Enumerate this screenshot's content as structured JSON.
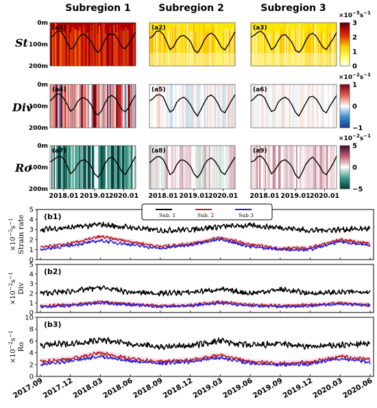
{
  "colors": {
    "sub1": "#000000",
    "sub2": "#b22222",
    "sub3": "#2b1bd6",
    "band": "#f7c8e0"
  },
  "top": {
    "col_titles": [
      "Subregion 1",
      "Subregion 2",
      "Subregion 3"
    ],
    "row_labels": [
      "St",
      "Div",
      "Ro"
    ],
    "depth_ticks": [
      "0m",
      "100m",
      "200m"
    ],
    "x_ticks": [
      "2018.01",
      "2019.01",
      "2020.01"
    ],
    "panel_labels": [
      "(a1)",
      "(a2)",
      "(a3)",
      "(a4)",
      "(a5)",
      "(a6)",
      "(a7)",
      "(a8)",
      "(a9)"
    ],
    "colorbars": [
      {
        "unit_base": "×10",
        "unit_exp": "−5",
        "unit_tail": "s",
        "unit_tail_exp": "−1",
        "ticks": [
          "3",
          "2",
          "1",
          "0"
        ],
        "range": [
          0,
          3
        ],
        "colormap": "hot_r"
      },
      {
        "unit_base": "×10",
        "unit_exp": "−2",
        "unit_tail": "s",
        "unit_tail_exp": "−1",
        "ticks": [
          "1",
          "0",
          "−1"
        ],
        "range": [
          -1,
          1
        ],
        "colormap": "RdBu_r"
      },
      {
        "unit_base": "×10",
        "unit_exp": "−2",
        "unit_tail": "s",
        "unit_tail_exp": "−1",
        "ticks": [
          "5",
          "0",
          "−5"
        ],
        "range": [
          -5,
          5
        ],
        "colormap": "curl"
      }
    ]
  },
  "legend": [
    "Sub. 1",
    "Sub. 2",
    "Sub 3"
  ],
  "bottom_x_ticks": [
    "2017.09",
    "2017.12",
    "2018.03",
    "2018.06",
    "2018.09",
    "2018.12",
    "2019.03",
    "2019.06",
    "2019.09",
    "2019.12",
    "2020.03",
    "2020.06"
  ],
  "chart_data": [
    {
      "type": "line",
      "label": "(b1)",
      "ylabel": "Strain rate",
      "yunit_base": "×10",
      "yunit_exp": "−5",
      "yunit_tail": "s",
      "yunit_tail_exp": "−1",
      "ylim": [
        0,
        5
      ],
      "yticks": [
        "0",
        "1",
        "2",
        "3",
        "4",
        "5"
      ],
      "x": [
        "2017.09",
        "2017.12",
        "2018.03",
        "2018.06",
        "2018.09",
        "2018.12",
        "2019.03",
        "2019.06",
        "2019.09",
        "2019.12",
        "2020.03",
        "2020.06"
      ],
      "series": [
        {
          "name": "Sub. 1",
          "values": [
            3.0,
            3.2,
            3.5,
            3.2,
            2.9,
            3.0,
            3.3,
            3.4,
            3.2,
            2.9,
            3.0,
            3.1
          ]
        },
        {
          "name": "Sub. 2",
          "values": [
            1.2,
            1.6,
            2.3,
            1.8,
            1.3,
            1.6,
            2.2,
            1.5,
            1.1,
            1.2,
            2.0,
            1.6
          ]
        },
        {
          "name": "Sub 3",
          "values": [
            1.0,
            1.4,
            1.9,
            1.5,
            1.1,
            1.5,
            2.0,
            1.3,
            1.0,
            1.0,
            1.8,
            1.4
          ]
        }
      ]
    },
    {
      "type": "line",
      "label": "(b2)",
      "ylabel": "Div",
      "yunit_base": "×10",
      "yunit_exp": "−2",
      "yunit_tail": "s",
      "yunit_tail_exp": "−1",
      "ylim": [
        0,
        5
      ],
      "yticks": [
        "0",
        "1",
        "2",
        "3",
        "4",
        "5"
      ],
      "x": [
        "2017.09",
        "2017.12",
        "2018.03",
        "2018.06",
        "2018.09",
        "2018.12",
        "2019.03",
        "2019.06",
        "2019.09",
        "2019.12",
        "2020.03",
        "2020.06"
      ],
      "series": [
        {
          "name": "Sub. 1",
          "values": [
            2.0,
            2.2,
            2.6,
            2.1,
            2.0,
            2.1,
            2.4,
            2.0,
            2.4,
            2.0,
            2.1,
            2.2
          ]
        },
        {
          "name": "Sub. 2",
          "values": [
            0.7,
            0.8,
            1.1,
            0.9,
            0.7,
            0.8,
            1.1,
            0.8,
            0.7,
            0.8,
            1.0,
            0.8
          ]
        },
        {
          "name": "Sub 3",
          "values": [
            0.6,
            0.7,
            1.0,
            0.8,
            0.6,
            0.7,
            1.0,
            0.7,
            0.6,
            0.7,
            0.9,
            0.7
          ]
        }
      ]
    },
    {
      "type": "line",
      "label": "(b3)",
      "ylabel": "Ro",
      "yunit_base": "×10",
      "yunit_exp": "−2",
      "yunit_tail": "s",
      "yunit_tail_exp": "−1",
      "ylim": [
        0,
        10
      ],
      "yticks": [
        "0",
        "2",
        "4",
        "6",
        "8",
        "10"
      ],
      "x": [
        "2017.09",
        "2017.12",
        "2018.03",
        "2018.06",
        "2018.09",
        "2018.12",
        "2019.03",
        "2019.06",
        "2019.09",
        "2019.12",
        "2020.03",
        "2020.06"
      ],
      "series": [
        {
          "name": "Sub. 1",
          "values": [
            5.3,
            5.5,
            6.2,
            5.5,
            5.0,
            5.2,
            6.0,
            5.2,
            5.5,
            5.0,
            5.3,
            5.5
          ]
        },
        {
          "name": "Sub. 2",
          "values": [
            2.5,
            3.0,
            4.0,
            3.0,
            2.5,
            2.8,
            3.6,
            2.5,
            2.2,
            2.4,
            3.4,
            2.8
          ]
        },
        {
          "name": "Sub 3",
          "values": [
            2.0,
            2.6,
            3.4,
            2.6,
            2.2,
            2.5,
            3.2,
            2.2,
            2.0,
            2.1,
            3.0,
            2.4
          ]
        }
      ]
    }
  ]
}
